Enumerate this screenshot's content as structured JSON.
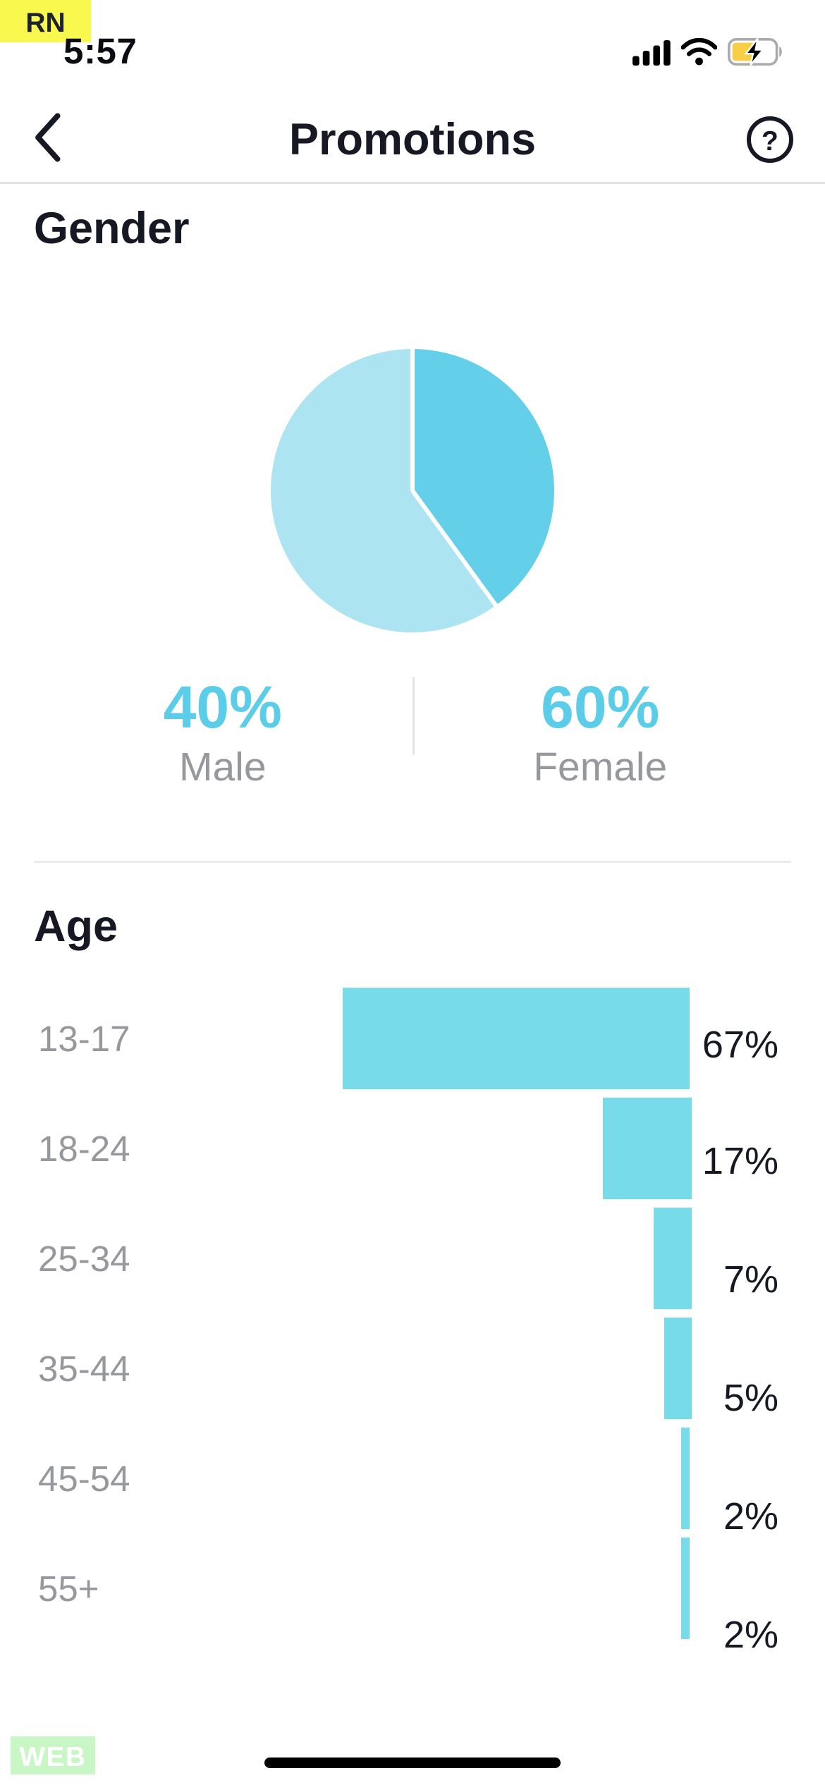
{
  "status_bar": {
    "dev_badge": "RN",
    "time": "5:57",
    "icons": [
      "cellular-signal",
      "wifi",
      "battery-charging"
    ]
  },
  "nav": {
    "title": "Promotions",
    "help_glyph": "?"
  },
  "gender": {
    "heading": "Gender",
    "legend": [
      {
        "value": "40%",
        "label": "Male"
      },
      {
        "value": "60%",
        "label": "Female"
      }
    ]
  },
  "age": {
    "heading": "Age"
  },
  "footer": {
    "env_badge": "WEB"
  },
  "colors": {
    "accent_cyan": "#5BCDE8",
    "pie_dark": "#63CFE8",
    "pie_light": "#ACE4F2",
    "bar_fill": "#78DBEA",
    "text_dark": "#161823",
    "text_gray": "#97989D",
    "rn_badge_bg": "#F9F84E",
    "web_badge_bg": "#C9F6C5",
    "battery_fill": "#F8CE46"
  },
  "chart_data": [
    {
      "type": "pie",
      "title": "Gender",
      "slices": [
        {
          "label": "Male",
          "value": 40,
          "color": "#63CFE8"
        },
        {
          "label": "Female",
          "value": 60,
          "color": "#ACE4F2"
        }
      ],
      "start_angle_deg": 0,
      "clockwise": true,
      "slice_gap_color": "#FFFFFF",
      "legend_position": "below"
    },
    {
      "type": "bar",
      "title": "Age",
      "orientation": "horizontal",
      "categories": [
        "13-17",
        "18-24",
        "25-34",
        "35-44",
        "45-54",
        "55+"
      ],
      "values": [
        67,
        17,
        7,
        5,
        2,
        2
      ],
      "value_labels": [
        "67%",
        "17%",
        "7%",
        "5%",
        "2%",
        "2%"
      ],
      "bar_color": "#78DBEA",
      "xlim": [
        0,
        67
      ],
      "bars_aligned": "right",
      "grid": false
    }
  ]
}
